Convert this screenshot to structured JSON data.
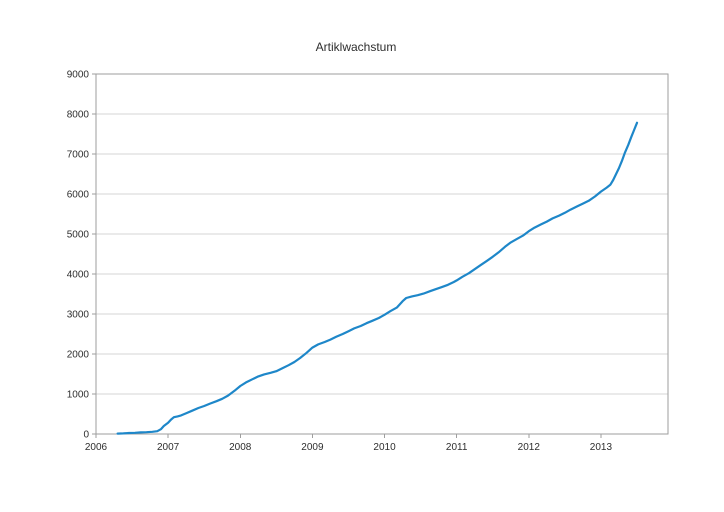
{
  "page": {
    "background": "#ffffff"
  },
  "chart_data": {
    "type": "line",
    "title": "Artiklwachstum",
    "xlabel": "",
    "ylabel": "",
    "xlim": [
      2006,
      2013.93
    ],
    "ylim": [
      0,
      9000
    ],
    "x_ticks": [
      2006,
      2007,
      2008,
      2009,
      2010,
      2011,
      2012,
      2013
    ],
    "y_ticks": [
      0,
      1000,
      2000,
      3000,
      4000,
      5000,
      6000,
      7000,
      8000,
      9000
    ],
    "grid": "horizontal",
    "legend": "none",
    "markers": "none",
    "line_color": "#1e87c9",
    "line_width": 2.2,
    "grid_color": "#d6d6d6",
    "border_color": "#9e9e9e",
    "text_color": "#2e2e2e",
    "points": [
      [
        2006.3,
        10
      ],
      [
        2006.38,
        15
      ],
      [
        2006.46,
        25
      ],
      [
        2006.54,
        30
      ],
      [
        2006.62,
        40
      ],
      [
        2006.7,
        45
      ],
      [
        2006.78,
        55
      ],
      [
        2006.85,
        70
      ],
      [
        2006.9,
        120
      ],
      [
        2006.94,
        200
      ],
      [
        2007.0,
        280
      ],
      [
        2007.04,
        360
      ],
      [
        2007.08,
        420
      ],
      [
        2007.13,
        440
      ],
      [
        2007.18,
        465
      ],
      [
        2007.25,
        520
      ],
      [
        2007.33,
        580
      ],
      [
        2007.42,
        650
      ],
      [
        2007.5,
        700
      ],
      [
        2007.58,
        760
      ],
      [
        2007.67,
        820
      ],
      [
        2007.75,
        880
      ],
      [
        2007.83,
        960
      ],
      [
        2007.92,
        1080
      ],
      [
        2008.0,
        1200
      ],
      [
        2008.08,
        1290
      ],
      [
        2008.17,
        1370
      ],
      [
        2008.25,
        1440
      ],
      [
        2008.33,
        1490
      ],
      [
        2008.42,
        1530
      ],
      [
        2008.5,
        1570
      ],
      [
        2008.58,
        1640
      ],
      [
        2008.67,
        1720
      ],
      [
        2008.75,
        1800
      ],
      [
        2008.83,
        1900
      ],
      [
        2008.92,
        2030
      ],
      [
        2009.0,
        2160
      ],
      [
        2009.08,
        2240
      ],
      [
        2009.17,
        2300
      ],
      [
        2009.25,
        2360
      ],
      [
        2009.33,
        2430
      ],
      [
        2009.42,
        2500
      ],
      [
        2009.5,
        2570
      ],
      [
        2009.58,
        2640
      ],
      [
        2009.67,
        2700
      ],
      [
        2009.75,
        2770
      ],
      [
        2009.83,
        2830
      ],
      [
        2009.92,
        2900
      ],
      [
        2010.0,
        2980
      ],
      [
        2010.08,
        3070
      ],
      [
        2010.17,
        3160
      ],
      [
        2010.25,
        3320
      ],
      [
        2010.3,
        3400
      ],
      [
        2010.38,
        3440
      ],
      [
        2010.46,
        3470
      ],
      [
        2010.54,
        3510
      ],
      [
        2010.63,
        3570
      ],
      [
        2010.71,
        3620
      ],
      [
        2010.79,
        3670
      ],
      [
        2010.88,
        3730
      ],
      [
        2010.96,
        3800
      ],
      [
        2011.0,
        3840
      ],
      [
        2011.08,
        3930
      ],
      [
        2011.17,
        4020
      ],
      [
        2011.25,
        4120
      ],
      [
        2011.33,
        4220
      ],
      [
        2011.42,
        4330
      ],
      [
        2011.5,
        4430
      ],
      [
        2011.58,
        4540
      ],
      [
        2011.67,
        4680
      ],
      [
        2011.75,
        4790
      ],
      [
        2011.83,
        4870
      ],
      [
        2011.92,
        4960
      ],
      [
        2012.0,
        5070
      ],
      [
        2012.08,
        5160
      ],
      [
        2012.17,
        5240
      ],
      [
        2012.25,
        5310
      ],
      [
        2012.33,
        5390
      ],
      [
        2012.42,
        5460
      ],
      [
        2012.5,
        5530
      ],
      [
        2012.58,
        5610
      ],
      [
        2012.67,
        5690
      ],
      [
        2012.75,
        5760
      ],
      [
        2012.83,
        5830
      ],
      [
        2012.92,
        5940
      ],
      [
        2013.0,
        6060
      ],
      [
        2013.08,
        6160
      ],
      [
        2013.13,
        6230
      ],
      [
        2013.17,
        6350
      ],
      [
        2013.21,
        6500
      ],
      [
        2013.25,
        6650
      ],
      [
        2013.29,
        6820
      ],
      [
        2013.33,
        7020
      ],
      [
        2013.38,
        7230
      ],
      [
        2013.42,
        7420
      ],
      [
        2013.46,
        7600
      ],
      [
        2013.5,
        7780
      ]
    ]
  }
}
